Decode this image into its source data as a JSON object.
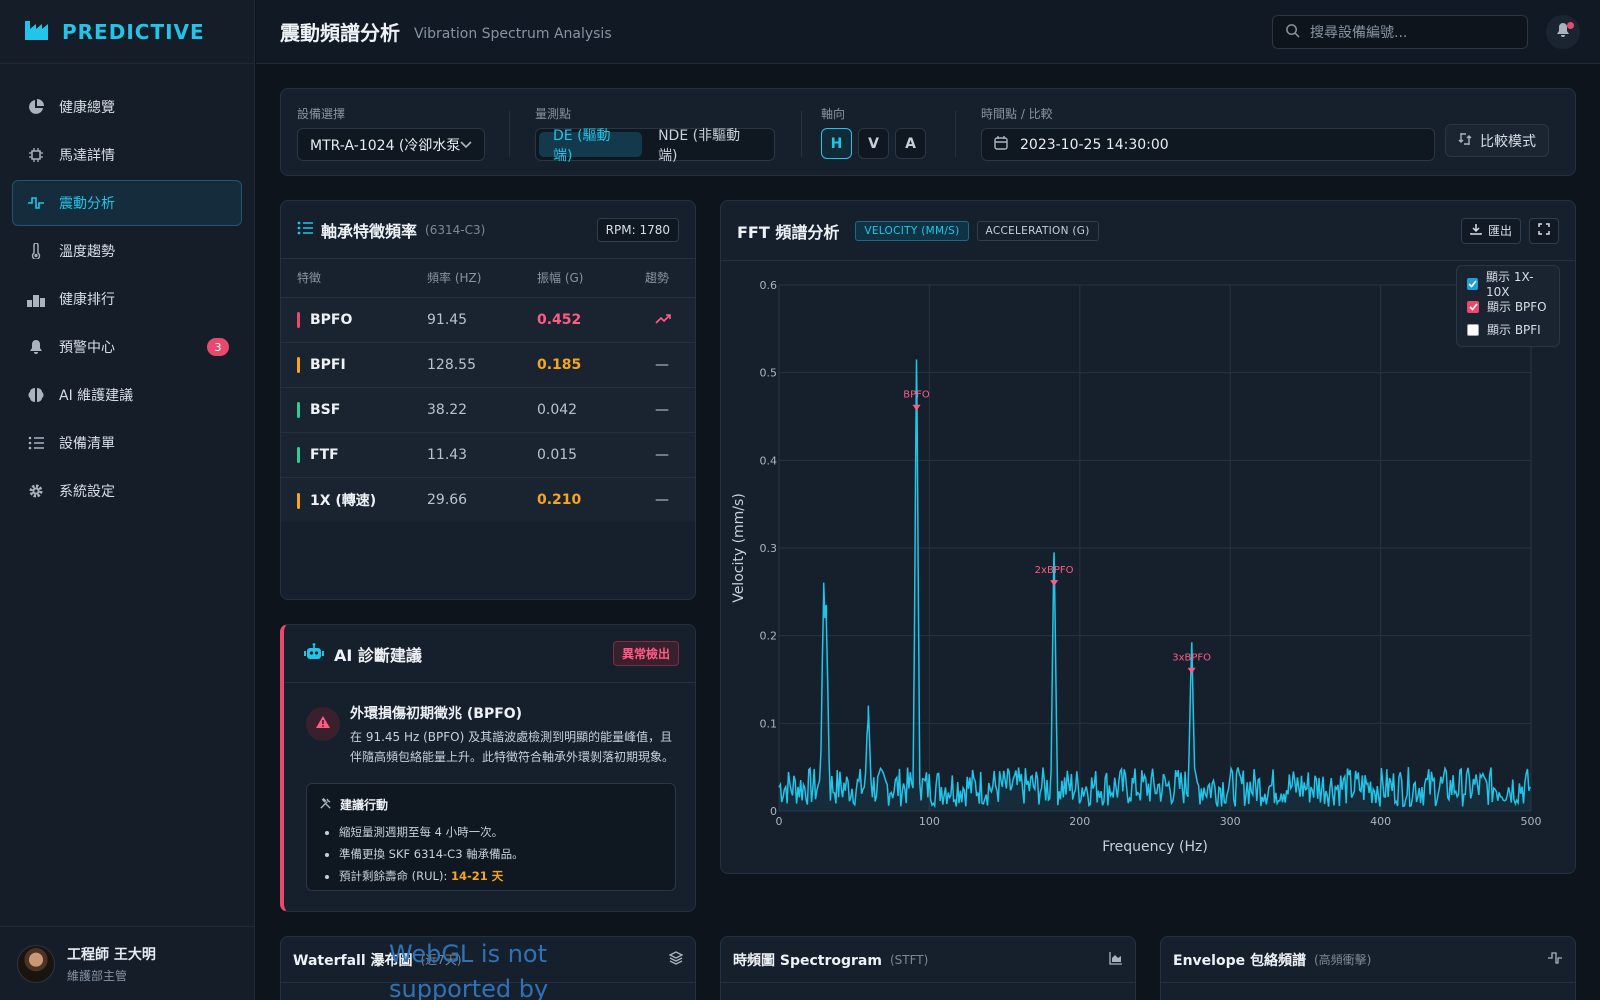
{
  "brand": {
    "name": "PREDICTIVE"
  },
  "sidebar": {
    "items": [
      {
        "label": "健康總覽",
        "icon": "pie-chart-icon",
        "active": false
      },
      {
        "label": "馬達詳情",
        "icon": "chip-icon",
        "active": false
      },
      {
        "label": "震動分析",
        "icon": "waveform-icon",
        "active": true
      },
      {
        "label": "溫度趨勢",
        "icon": "thermometer-icon",
        "active": false
      },
      {
        "label": "健康排行",
        "icon": "podium-icon",
        "active": false
      },
      {
        "label": "預警中心",
        "icon": "bell-icon",
        "active": false,
        "badge": "3"
      },
      {
        "label": "AI 維護建議",
        "icon": "brain-icon",
        "active": false
      },
      {
        "label": "設備清單",
        "icon": "list-icon",
        "active": false
      },
      {
        "label": "系統設定",
        "icon": "gear-icon",
        "active": false
      }
    ],
    "user": {
      "name": "工程師 王大明",
      "role": "維護部主管"
    }
  },
  "header": {
    "title": "震動頻譜分析",
    "subtitle": "Vibration Spectrum Analysis",
    "search_placeholder": "搜尋設備編號..."
  },
  "filters": {
    "device_label": "設備選擇",
    "device_value": "MTR-A-1024 (冷卻水泵",
    "point_label": "量測點",
    "point_options": [
      "DE (驅動端)",
      "NDE (非驅動端)"
    ],
    "axis_label": "軸向",
    "axis_options": [
      "H",
      "V",
      "A"
    ],
    "time_label": "時間點 / 比較",
    "time_value": "2023-10-25 14:30:00",
    "compare_label": "比較模式"
  },
  "bearing": {
    "title": "軸承特徵頻率",
    "model": "(6314-C3)",
    "rpm": "RPM: 1780",
    "headers": [
      "特徵",
      "頻率 (HZ)",
      "振幅 (G)",
      "趨勢"
    ],
    "rows": [
      {
        "name": "BPFO",
        "freq": "91.45",
        "amp": "0.452",
        "trend": "up",
        "color": "#e84a6e",
        "amp_color": "#ff5c84"
      },
      {
        "name": "BPFI",
        "freq": "128.55",
        "amp": "0.185",
        "trend": "flat",
        "color": "#f5a524",
        "amp_color": "#f5a524"
      },
      {
        "name": "BSF",
        "freq": "38.22",
        "amp": "0.042",
        "trend": "flat",
        "color": "#2ecc9a",
        "amp_color": "#b9c3ce"
      },
      {
        "name": "FTF",
        "freq": "11.43",
        "amp": "0.015",
        "trend": "flat",
        "color": "#2ecc9a",
        "amp_color": "#b9c3ce"
      },
      {
        "name": "1X (轉速)",
        "freq": "29.66",
        "amp": "0.210",
        "trend": "flat",
        "color": "#f5a524",
        "amp_color": "#f5a524"
      }
    ],
    "trend_flat": "—"
  },
  "ai": {
    "title": "AI 診斷建議",
    "tag": "異常檢出",
    "heading": "外環損傷初期徵兆 (BPFO)",
    "text": "在 91.45 Hz (BPFO) 及其諧波處檢測到明顯的能量峰值，且伴隨高頻包絡能量上升。此特徵符合軸承外環剝落初期現象。",
    "action_title": "建議行動",
    "actions": [
      "縮短量測週期至每 4 小時一次。",
      "準備更換 SKF 6314-C3 軸承備品。"
    ],
    "rul_label": "預計剩餘壽命 (RUL): ",
    "rul_value": "14-21 天"
  },
  "fft": {
    "title": "FFT 頻譜分析",
    "unit_velocity": "VELOCITY (MM/S)",
    "unit_accel": "ACCELERATION (G)",
    "export_label": "匯出",
    "legend": [
      {
        "label": "顯示 1X-10X",
        "checked": true,
        "color": "#1e9fd6"
      },
      {
        "label": "顯示 BPFO",
        "checked": true,
        "color": "#e84a6e"
      },
      {
        "label": "顯示 BPFI",
        "checked": false,
        "color": "#ffffff"
      }
    ]
  },
  "chart_data": {
    "type": "line",
    "xlabel": "Frequency (Hz)",
    "ylabel": "Velocity (mm/s)",
    "xlim": [
      0,
      500
    ],
    "ylim": [
      0,
      0.6
    ],
    "xticks": [
      0,
      100,
      200,
      300,
      400,
      500
    ],
    "yticks": [
      0,
      0.1,
      0.2,
      0.3,
      0.4,
      0.5,
      0.6
    ],
    "grid": true,
    "legend_position": "top-right",
    "series": [
      {
        "color": "#22c4e8",
        "points": [
          [
            0,
            0.03
          ],
          [
            29,
            0.03
          ],
          [
            29.66,
            0.245
          ],
          [
            30.5,
            0.22
          ],
          [
            31.5,
            0.215
          ],
          [
            32,
            0.03
          ],
          [
            58,
            0.03
          ],
          [
            59.3,
            0.105
          ],
          [
            60.5,
            0.03
          ],
          [
            90,
            0.03
          ],
          [
            91.45,
            0.515
          ],
          [
            92.8,
            0.03
          ],
          [
            181,
            0.03
          ],
          [
            182.9,
            0.295
          ],
          [
            184.5,
            0.03
          ],
          [
            273,
            0.03
          ],
          [
            274.35,
            0.185
          ],
          [
            275.8,
            0.03
          ],
          [
            500,
            0.03
          ]
        ],
        "noise_floor": 0.03
      }
    ],
    "annotations": [
      {
        "label": "BPFO",
        "x": 91.45,
        "y": 0.46
      },
      {
        "label": "2xBPFO",
        "x": 182.9,
        "y": 0.26
      },
      {
        "label": "3xBPFO",
        "x": 274.35,
        "y": 0.16
      }
    ]
  },
  "bottom_panels": [
    {
      "title": "Waterfall 瀑布圖",
      "note": "(近7天)",
      "icon": "layers-icon",
      "message": "WebGL is not supported by"
    },
    {
      "title": "時頻圖 Spectrogram",
      "note": "(STFT)",
      "icon": "area-chart-icon"
    },
    {
      "title": "Envelope 包絡頻譜",
      "note": "(高頻衝擊)",
      "icon": "pulse-icon"
    }
  ]
}
